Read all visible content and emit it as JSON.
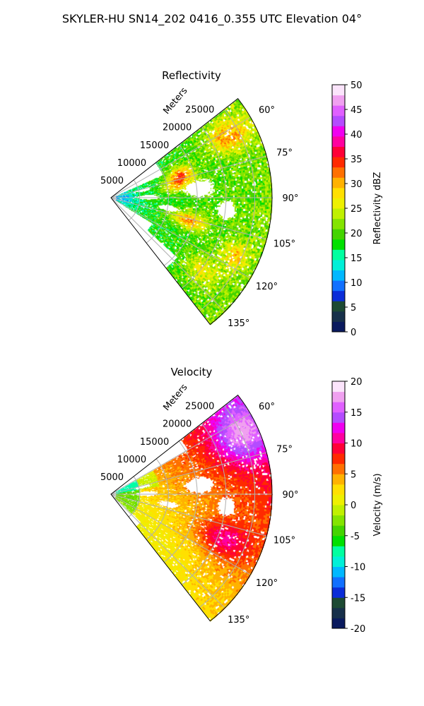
{
  "figure": {
    "title": "SKYLER-HU  SN14_202  0416_0.355 UTC Elevation 04°"
  },
  "chart_data": [
    {
      "type": "heatmap",
      "subtype": "polar-sector-radar-ppi",
      "title": "Reflectivity",
      "radial_axis_label": "Meters",
      "radial_ticks": [
        5000,
        10000,
        15000,
        20000,
        25000
      ],
      "radial_tick_labels": [
        "5000",
        "10000",
        "15000",
        "20000",
        "25000"
      ],
      "r_max": 28000,
      "azimuth_range_deg": [
        52,
        142
      ],
      "azimuth_ticks": [
        60,
        75,
        90,
        105,
        120,
        135
      ],
      "azimuth_tick_labels": [
        "60°",
        "75°",
        "90°",
        "105°",
        "120°",
        "135°"
      ],
      "grid": true,
      "colorbar": {
        "label": "Reflectivity dBZ",
        "min": 0,
        "max": 50,
        "ticks": [
          0,
          5,
          10,
          15,
          20,
          25,
          30,
          35,
          40,
          45,
          50
        ],
        "tick_labels": [
          "0",
          "5",
          "10",
          "15",
          "20",
          "25",
          "30",
          "35",
          "40",
          "45",
          "50"
        ]
      },
      "colors": [
        "#0a1a5e",
        "#17304a",
        "#1d4a33",
        "#0b2dd8",
        "#1170ff",
        "#00b8ff",
        "#00f0d8",
        "#00ffa0",
        "#00e000",
        "#44d400",
        "#84e400",
        "#c0f000",
        "#eef000",
        "#ffe000",
        "#ffb200",
        "#ff7000",
        "#ff2a00",
        "#ff0038",
        "#ff00a0",
        "#f000f0",
        "#b44cff",
        "#e060ff",
        "#f0a0f0",
        "#fbe4fb"
      ],
      "field": "reflectivity"
    },
    {
      "type": "heatmap",
      "subtype": "polar-sector-radar-ppi",
      "title": "Velocity",
      "radial_axis_label": "Meters",
      "radial_ticks": [
        5000,
        10000,
        15000,
        20000,
        25000
      ],
      "radial_tick_labels": [
        "5000",
        "10000",
        "15000",
        "20000",
        "25000"
      ],
      "r_max": 28000,
      "azimuth_range_deg": [
        52,
        142
      ],
      "azimuth_ticks": [
        60,
        75,
        90,
        105,
        120,
        135
      ],
      "azimuth_tick_labels": [
        "60°",
        "75°",
        "90°",
        "105°",
        "120°",
        "135°"
      ],
      "grid": true,
      "colorbar": {
        "label": "Velocity (m/s)",
        "min": -20,
        "max": 20,
        "ticks": [
          -20,
          -15,
          -10,
          -5,
          0,
          5,
          10,
          15,
          20
        ],
        "tick_labels": [
          "-20",
          "-15",
          "-10",
          "-5",
          "0",
          "5",
          "10",
          "15",
          "20"
        ]
      },
      "colors": [
        "#0a1a5e",
        "#17304a",
        "#1d4a33",
        "#0b2dd8",
        "#1170ff",
        "#00b8ff",
        "#00f0d8",
        "#00ffa0",
        "#00e000",
        "#44d400",
        "#84e400",
        "#c0f000",
        "#eef000",
        "#ffe000",
        "#ffb200",
        "#ff7000",
        "#ff2a00",
        "#ff0038",
        "#ff00a0",
        "#f000f0",
        "#b44cff",
        "#e060ff",
        "#f0a0f0",
        "#fbe4fb"
      ],
      "field": "velocity"
    }
  ]
}
